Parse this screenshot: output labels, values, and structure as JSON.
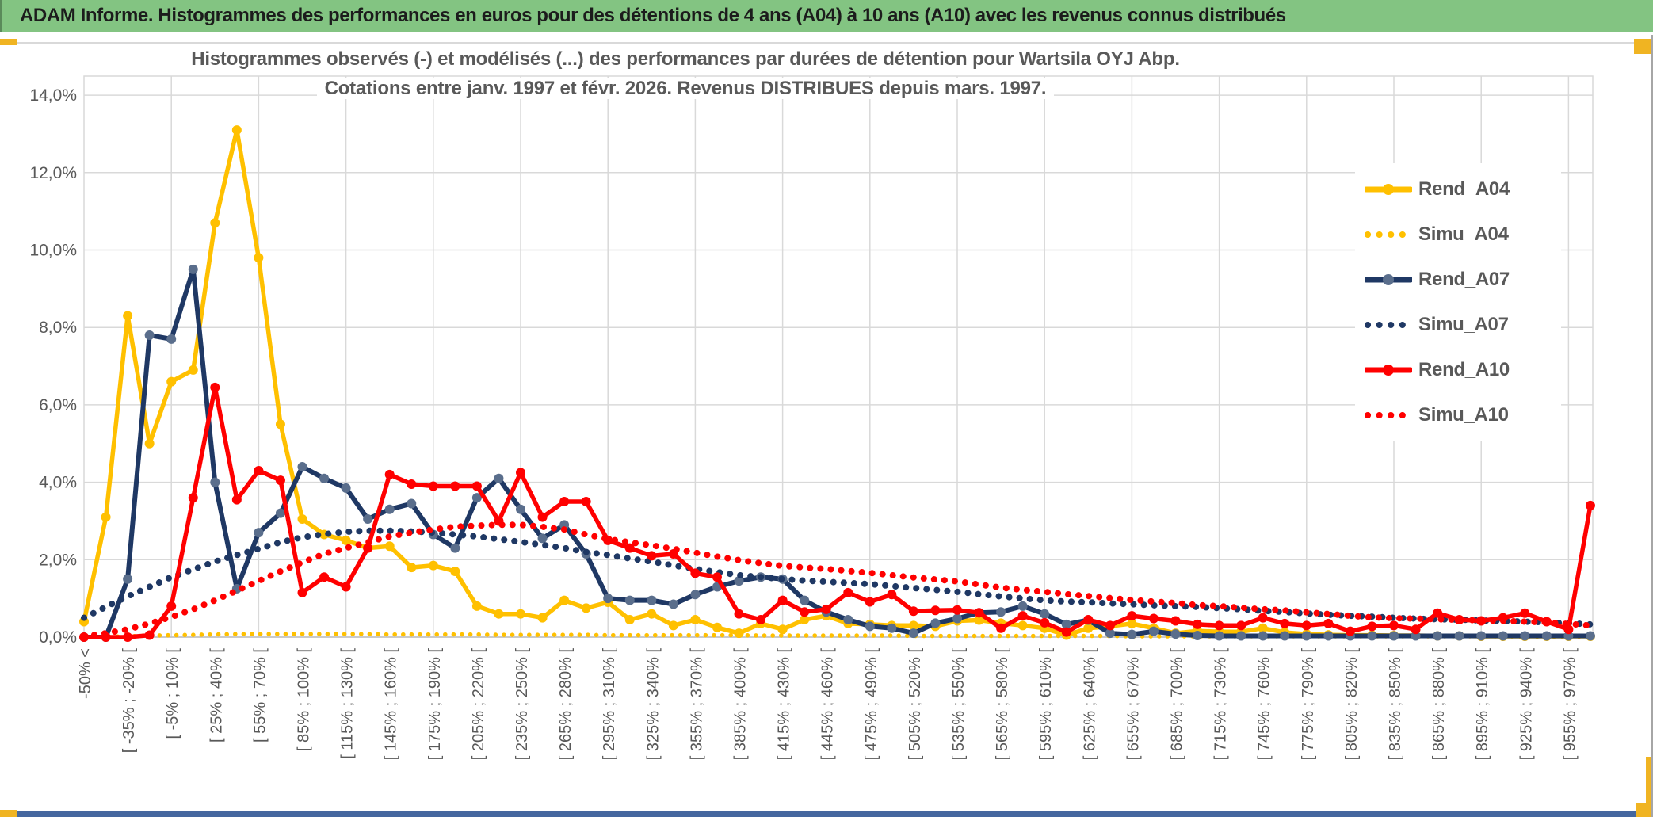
{
  "header": {
    "title": "ADAM Informe. Histogrammes des performances en euros pour des détentions de 4 ans (A04) à 10 ans (A10) avec les revenus connus distribués",
    "bar_color": "#83C482",
    "accent_color": "#F0B422",
    "bottom_bar_color": "#45679F"
  },
  "chart_data": {
    "type": "line",
    "title_line1": "Histogrammes observés (-) et modélisés (...) des performances par durées de détention pour Wartsila OYJ Abp.",
    "title_line2": "Cotations entre janv. 1997 et févr. 2026. Revenus DISTRIBUES depuis mars. 1997.",
    "ylim": [
      0,
      14
    ],
    "grid": true,
    "legend_position": "right",
    "text_color": "#595959",
    "grid_color": "#D9D9D9",
    "y_ticks": [
      "0,0%",
      "2,0%",
      "4,0%",
      "6,0%",
      "8,0%",
      "10,0%",
      "12,0%",
      "14,0%"
    ],
    "x_labels": [
      "-50% <",
      "[ -35% ; -20% [",
      "[ -5% ; 10% [",
      "[ 25% ; 40% [",
      "[ 55% ; 70% [",
      "[ 85% ; 100% [",
      "[ 115% ; 130% [",
      "[ 145% ; 160% [",
      "[ 175% ; 190% [",
      "[ 205% ; 220% [",
      "[ 235% ; 250% [",
      "[ 265% ; 280% [",
      "[ 295% ; 310% [",
      "[ 325% ; 340% [",
      "[ 355% ; 370% [",
      "[ 385% ; 400% [",
      "[ 415% ; 430% [",
      "[ 445% ; 460% [",
      "[ 475% ; 490% [",
      "[ 505% ; 520% [",
      "[ 535% ; 550% [",
      "[ 565% ; 580% [",
      "[ 595% ; 610% [",
      "[ 625% ; 640% [",
      "[ 655% ; 670% [",
      "[ 685% ; 700% [",
      "[ 715% ; 730% [",
      "[ 745% ; 760% [",
      "[ 775% ; 790% [",
      "[ 805% ; 820% [",
      "[ 835% ; 850% [",
      "[ 865% ; 880% [",
      "[ 895% ; 910% [",
      "[ 925% ; 940% [",
      "[ 955% ; 970% ["
    ],
    "x_labels_note": "labels shown on every other data bin; bins are 15-point intervals",
    "series": [
      {
        "name": "Rend_A04",
        "color": "#FFC000",
        "marker_color": "#FFC000",
        "style": "solid",
        "values": [
          0.4,
          3.1,
          8.3,
          5.0,
          6.6,
          6.9,
          10.7,
          13.1,
          9.8,
          5.5,
          3.05,
          2.65,
          2.5,
          2.3,
          2.35,
          1.8,
          1.85,
          1.7,
          0.8,
          0.6,
          0.6,
          0.5,
          0.95,
          0.75,
          0.9,
          0.45,
          0.6,
          0.3,
          0.45,
          0.25,
          0.1,
          0.35,
          0.2,
          0.45,
          0.55,
          0.35,
          0.33,
          0.3,
          0.3,
          0.28,
          0.42,
          0.44,
          0.36,
          0.3,
          0.23,
          0.05,
          0.23,
          0.28,
          0.35,
          0.23,
          0.1,
          0.16,
          0.14,
          0.14,
          0.23,
          0.12,
          0.08,
          0.06,
          0.05,
          0.05,
          0.04,
          0.04,
          0.03,
          0.03,
          0.02,
          0.02,
          0.02,
          0.02,
          0.02,
          0.02
        ]
      },
      {
        "name": "Simu_A04",
        "color": "#FFC000",
        "style": "dotted",
        "values": [
          0.0,
          0.01,
          0.02,
          0.04,
          0.05,
          0.06,
          0.07,
          0.08,
          0.08,
          0.08,
          0.08,
          0.08,
          0.08,
          0.08,
          0.07,
          0.07,
          0.07,
          0.07,
          0.07,
          0.06,
          0.06,
          0.06,
          0.06,
          0.06,
          0.05,
          0.05,
          0.05,
          0.05,
          0.05,
          0.05,
          0.05,
          0.04,
          0.04,
          0.04,
          0.04,
          0.04,
          0.04,
          0.04,
          0.03,
          0.03,
          0.03,
          0.03,
          0.03,
          0.03,
          0.03,
          0.03,
          0.03,
          0.03,
          0.02,
          0.02,
          0.02,
          0.02,
          0.02,
          0.02,
          0.02,
          0.02,
          0.02,
          0.02,
          0.02,
          0.02,
          0.02,
          0.02,
          0.02,
          0.02,
          0.02,
          0.02,
          0.01,
          0.01,
          0.01,
          0.01
        ]
      },
      {
        "name": "Rend_A07",
        "color": "#1F3864",
        "marker_color": "#5A6E8C",
        "style": "solid",
        "values": [
          0.0,
          0.0,
          1.5,
          7.8,
          7.7,
          9.5,
          4.0,
          1.25,
          2.7,
          3.2,
          4.4,
          4.1,
          3.85,
          3.05,
          3.3,
          3.45,
          2.65,
          2.3,
          3.6,
          4.1,
          3.3,
          2.55,
          2.9,
          2.15,
          1.0,
          0.95,
          0.95,
          0.85,
          1.1,
          1.3,
          1.45,
          1.55,
          1.5,
          0.95,
          0.65,
          0.45,
          0.28,
          0.23,
          0.1,
          0.36,
          0.48,
          0.63,
          0.65,
          0.8,
          0.6,
          0.33,
          0.44,
          0.1,
          0.07,
          0.15,
          0.08,
          0.04,
          0.03,
          0.03,
          0.03,
          0.03,
          0.03,
          0.03,
          0.03,
          0.03,
          0.03,
          0.03,
          0.03,
          0.03,
          0.03,
          0.03,
          0.03,
          0.03,
          0.03,
          0.03
        ]
      },
      {
        "name": "Simu_A07",
        "color": "#1F3864",
        "style": "dotted",
        "values": [
          0.5,
          0.78,
          1.05,
          1.3,
          1.55,
          1.75,
          1.95,
          2.12,
          2.28,
          2.45,
          2.58,
          2.66,
          2.72,
          2.75,
          2.75,
          2.73,
          2.7,
          2.65,
          2.6,
          2.53,
          2.46,
          2.38,
          2.3,
          2.2,
          2.12,
          2.03,
          1.95,
          1.85,
          1.76,
          1.68,
          1.6,
          1.55,
          1.5,
          1.46,
          1.43,
          1.4,
          1.37,
          1.32,
          1.27,
          1.22,
          1.17,
          1.11,
          1.05,
          1.0,
          0.95,
          0.92,
          0.9,
          0.87,
          0.85,
          0.82,
          0.8,
          0.78,
          0.75,
          0.72,
          0.68,
          0.65,
          0.61,
          0.58,
          0.55,
          0.53,
          0.5,
          0.48,
          0.46,
          0.45,
          0.43,
          0.42,
          0.4,
          0.38,
          0.36,
          0.33
        ]
      },
      {
        "name": "Rend_A10",
        "color": "#FF0000",
        "marker_color": "#FF0000",
        "style": "solid",
        "values": [
          0.0,
          0.0,
          0.0,
          0.05,
          0.8,
          3.6,
          6.45,
          3.55,
          4.3,
          4.05,
          1.15,
          1.55,
          1.3,
          2.3,
          4.2,
          3.95,
          3.9,
          3.9,
          3.9,
          3.0,
          4.25,
          3.1,
          3.5,
          3.5,
          2.5,
          2.3,
          2.1,
          2.15,
          1.65,
          1.55,
          0.6,
          0.45,
          0.95,
          0.65,
          0.72,
          1.15,
          0.91,
          1.1,
          0.67,
          0.69,
          0.7,
          0.63,
          0.23,
          0.55,
          0.37,
          0.13,
          0.45,
          0.3,
          0.55,
          0.48,
          0.42,
          0.33,
          0.3,
          0.3,
          0.5,
          0.35,
          0.3,
          0.35,
          0.15,
          0.28,
          0.3,
          0.2,
          0.62,
          0.45,
          0.42,
          0.5,
          0.62,
          0.4,
          0.2,
          3.4
        ]
      },
      {
        "name": "Simu_A10",
        "color": "#FF0000",
        "style": "dotted",
        "values": [
          0.02,
          0.1,
          0.2,
          0.35,
          0.52,
          0.72,
          0.95,
          1.2,
          1.45,
          1.7,
          1.93,
          2.15,
          2.3,
          2.45,
          2.6,
          2.7,
          2.78,
          2.85,
          2.88,
          2.9,
          2.9,
          2.85,
          2.78,
          2.65,
          2.53,
          2.45,
          2.37,
          2.28,
          2.18,
          2.08,
          1.99,
          1.91,
          1.84,
          1.8,
          1.76,
          1.71,
          1.66,
          1.6,
          1.54,
          1.49,
          1.44,
          1.36,
          1.28,
          1.22,
          1.17,
          1.11,
          1.06,
          1.01,
          0.96,
          0.92,
          0.88,
          0.83,
          0.8,
          0.76,
          0.72,
          0.69,
          0.64,
          0.6,
          0.55,
          0.51,
          0.49,
          0.48,
          0.46,
          0.45,
          0.43,
          0.42,
          0.4,
          0.38,
          0.34,
          0.3
        ]
      }
    ]
  }
}
